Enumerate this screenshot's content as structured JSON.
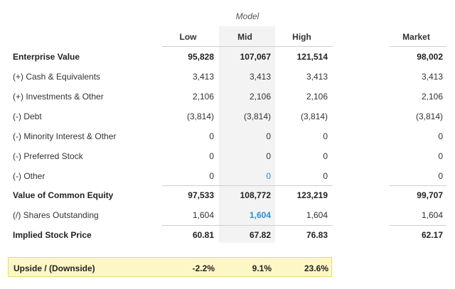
{
  "model_label": "Model",
  "columns": {
    "low": "Low",
    "mid": "Mid",
    "high": "High",
    "market": "Market"
  },
  "rows": [
    {
      "label": "Enterprise Value",
      "low": "95,828",
      "mid": "107,067",
      "high": "121,514",
      "market": "98,002",
      "bold": true
    },
    {
      "label": "(+) Cash & Equivalents",
      "low": "3,413",
      "mid": "3,413",
      "high": "3,413",
      "market": "3,413"
    },
    {
      "label": "(+) Investments & Other",
      "low": "2,106",
      "mid": "2,106",
      "high": "2,106",
      "market": "2,106"
    },
    {
      "label": "(-) Debt",
      "low": "(3,814)",
      "mid": "(3,814)",
      "high": "(3,814)",
      "market": "(3,814)"
    },
    {
      "label": "(-) Minority Interest & Other",
      "low": "0",
      "mid": "0",
      "high": "0",
      "market": "0"
    },
    {
      "label": "(-) Preferred Stock",
      "low": "0",
      "mid": "0",
      "high": "0",
      "market": "0"
    },
    {
      "label": "(-) Other",
      "low": "0",
      "mid": "0",
      "high": "0",
      "market": "0"
    },
    {
      "label": "Value of Common Equity",
      "low": "97,533",
      "mid": "108,772",
      "high": "123,219",
      "market": "99,707",
      "bold": true
    },
    {
      "label": "(/) Shares Outstanding",
      "low": "1,604",
      "mid": "1,604",
      "high": "1,604",
      "market": "1,604"
    },
    {
      "label": "Implied Stock Price",
      "low": "60.81",
      "mid": "67.82",
      "high": "76.83",
      "market": "62.17",
      "bold": true
    }
  ],
  "upside": {
    "label": "Upside / (Downside)",
    "low": "-2.2%",
    "mid": "9.1%",
    "high": "23.6%"
  },
  "colors": {
    "link_blue": "#2b8fd6",
    "highlight_bg": "#fdf7c6",
    "highlight_border": "#e8dc70",
    "mid_column_bg": "#f3f3f3"
  }
}
